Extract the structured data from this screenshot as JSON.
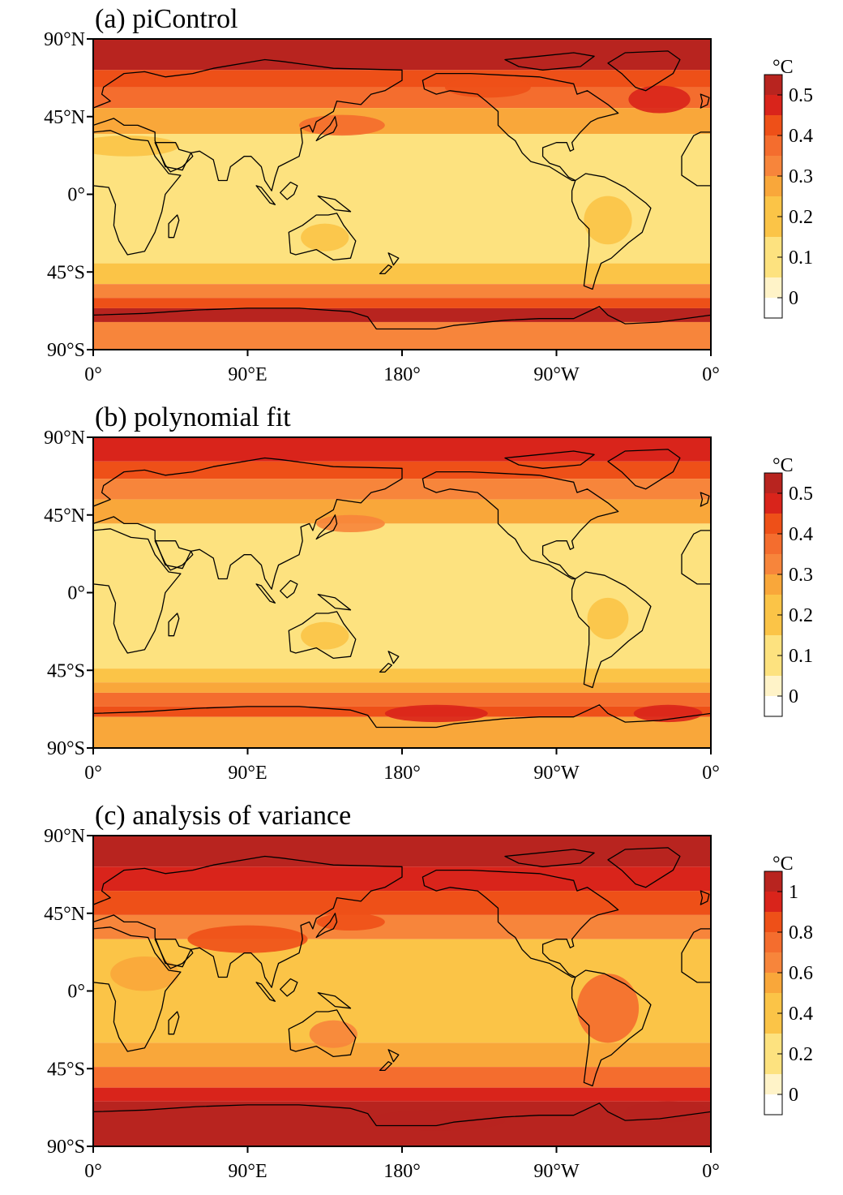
{
  "panels": [
    {
      "id": "a",
      "title": "(a) piControl",
      "colorbar": {
        "unit": "°C",
        "labels": [
          "0.5",
          "0.4",
          "0.3",
          "0.2",
          "0.1",
          "0"
        ]
      },
      "style": "a"
    },
    {
      "id": "b",
      "title": "(b) polynomial fit",
      "colorbar": {
        "unit": "°C",
        "labels": [
          "0.5",
          "0.4",
          "0.3",
          "0.2",
          "0.1",
          "0"
        ]
      },
      "style": "b"
    },
    {
      "id": "c",
      "title": "(c) analysis of variance",
      "colorbar": {
        "unit": "°C",
        "labels": [
          "1",
          "0.8",
          "0.6",
          "0.4",
          "0.2",
          "0"
        ]
      },
      "style": "c"
    }
  ],
  "axes": {
    "lat_labels": [
      "90°N",
      "45°N",
      "0°",
      "45°S",
      "90°S"
    ],
    "lon_labels": [
      "0°",
      "90°E",
      "180°",
      "90°W",
      "0°"
    ]
  },
  "palette": [
    "#ffffff",
    "#fff3c8",
    "#fde27f",
    "#fbc447",
    "#f9a73a",
    "#f7853b",
    "#f46d2e",
    "#ee5018",
    "#d9241b",
    "#b8241f"
  ]
}
